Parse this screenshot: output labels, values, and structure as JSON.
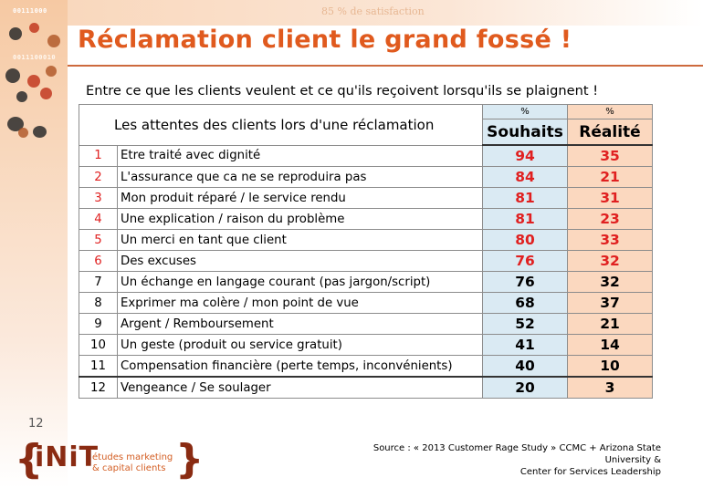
{
  "slide": {
    "title": "Réclamation client le grand fossé !",
    "subtitle": "Entre ce que les clients veulent et ce qu'ils reçoivent lorsqu'ils se plaignent !",
    "page_number": "12",
    "background_fragments": [
      "00111000",
      "0011100010",
      "85 % de satisfaction"
    ],
    "source_line1": "Source : « 2013 Customer Rage Study » CCMC + Arizona State University &",
    "source_line2": "Center for Services Leadership"
  },
  "logo": {
    "brand": "iNiT",
    "line1": "études marketing",
    "line2": "& capital clients",
    "color": "#8a2b12"
  },
  "table": {
    "header_label": "Les attentes des clients lors d'une réclamation",
    "percent_symbol_souhaits": "%",
    "percent_symbol_realite": "%",
    "col_souhaits": "Souhaits",
    "col_realite": "Réalité",
    "souhaits_bg": "#daeaf3",
    "realite_bg": "#fbd8bf",
    "highlight_color": "#e02020",
    "rows": [
      {
        "num": "1",
        "label": "Etre traité avec dignité",
        "souhaits": "94",
        "realite": "35",
        "highlighted": true
      },
      {
        "num": "2",
        "label": "L'assurance que ca ne se reproduira pas",
        "souhaits": "84",
        "realite": "21",
        "highlighted": true
      },
      {
        "num": "3",
        "label": "Mon produit réparé / le service rendu",
        "souhaits": "81",
        "realite": "31",
        "highlighted": true
      },
      {
        "num": "4",
        "label": "Une explication / raison du problème",
        "souhaits": "81",
        "realite": "23",
        "highlighted": true
      },
      {
        "num": "5",
        "label": "Un merci en tant que client",
        "souhaits": "80",
        "realite": "33",
        "highlighted": true
      },
      {
        "num": "6",
        "label": "Des excuses",
        "souhaits": "76",
        "realite": "32",
        "highlighted": true
      },
      {
        "num": "7",
        "label": "Un échange en langage courant (pas jargon/script)",
        "souhaits": "76",
        "realite": "32",
        "highlighted": false
      },
      {
        "num": "8",
        "label": "Exprimer ma colère / mon point de vue",
        "souhaits": "68",
        "realite": "37",
        "highlighted": false
      },
      {
        "num": "9",
        "label": "Argent / Remboursement",
        "souhaits": "52",
        "realite": "21",
        "highlighted": false
      },
      {
        "num": "10",
        "label": "Un geste (produit ou service gratuit)",
        "souhaits": "41",
        "realite": "14",
        "highlighted": false
      },
      {
        "num": "11",
        "label": "Compensation financière (perte temps, inconvénients)",
        "souhaits": "40",
        "realite": "10",
        "highlighted": false
      },
      {
        "num": "12",
        "label": "Vengeance / Se soulager",
        "souhaits": "20",
        "realite": "3",
        "highlighted": false
      }
    ]
  }
}
